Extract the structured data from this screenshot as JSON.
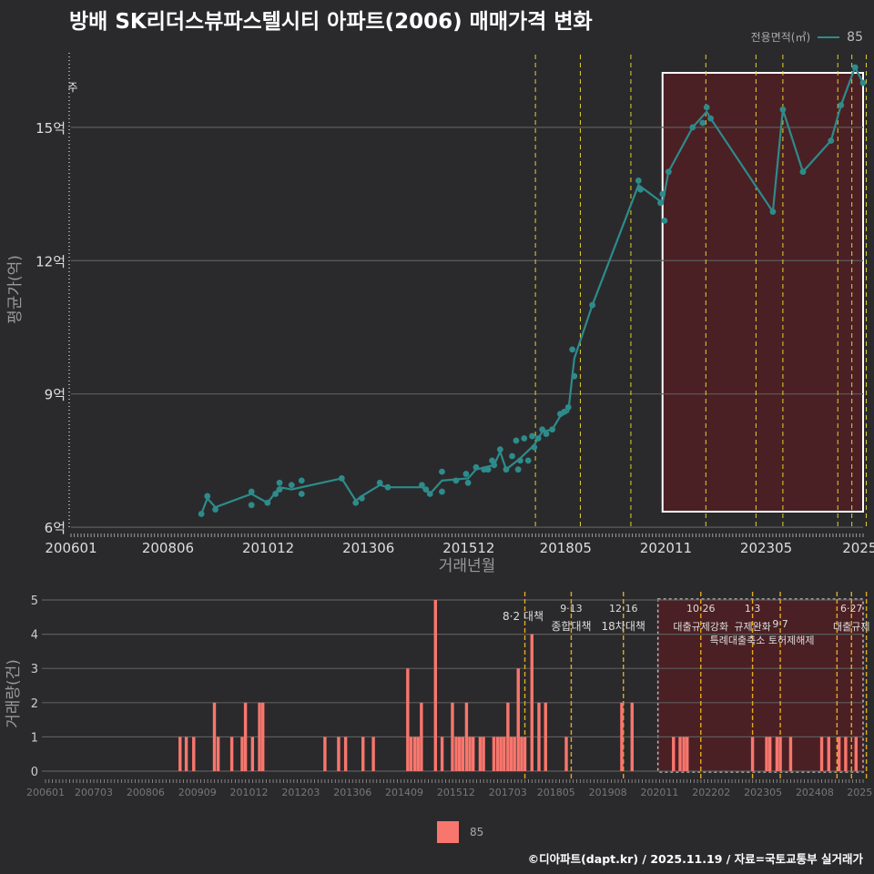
{
  "title": "방배 SK리더스뷰파스텔시티 아파트(2006) 매매가격 변화",
  "legend": {
    "title": "전용면적(㎡)",
    "label": "85"
  },
  "bar_legend_label": "85",
  "caption": "©디아파트(dapt.kr) / 2025.11.19 / 자료=국토교통부 실거래가",
  "colors": {
    "line": "#2e8b8b",
    "bar": "#f8766d",
    "shade": "#4a2024",
    "policy": "#e5d12b"
  },
  "annotation_note": "주",
  "chart_data": [
    {
      "type": "line",
      "title": "방배 SK리더스뷰파스텔시티 아파트(2006) 매매가격 변화",
      "xlabel": "거래년월",
      "ylabel": "평균가(억)",
      "xlim": [
        2006.0,
        2025.75
      ],
      "ylim": [
        5.9,
        16.8
      ],
      "xticks": [
        {
          "v": 2006.0,
          "label": "200601"
        },
        {
          "v": 2008.4167,
          "label": "200806"
        },
        {
          "v": 2010.9167,
          "label": "201012"
        },
        {
          "v": 2013.4167,
          "label": "201306"
        },
        {
          "v": 2015.9167,
          "label": "201512"
        },
        {
          "v": 2018.3333,
          "label": "201805"
        },
        {
          "v": 2020.8333,
          "label": "202011"
        },
        {
          "v": 2023.3333,
          "label": "202305"
        },
        {
          "v": 2025.6667,
          "label": "2025"
        }
      ],
      "yticks": [
        {
          "v": 6,
          "label": "6억"
        },
        {
          "v": 9,
          "label": "9억"
        },
        {
          "v": 12,
          "label": "12억"
        },
        {
          "v": 15,
          "label": "15억"
        }
      ],
      "shade_range": [
        2020.75,
        2025.75
      ],
      "policy_lines": [
        2017.58,
        2018.7,
        2019.96,
        2021.83,
        2023.08,
        2023.75,
        2025.12,
        2025.47,
        2025.83
      ],
      "series": [
        {
          "name": "85",
          "points": [
            [
              2009.25,
              6.3
            ],
            [
              2009.4,
              6.7
            ],
            [
              2009.6,
              6.4
            ],
            [
              2010.5,
              6.8
            ],
            [
              2010.5,
              6.5
            ],
            [
              2010.9,
              6.55
            ],
            [
              2011.1,
              6.75
            ],
            [
              2011.2,
              7.0
            ],
            [
              2011.2,
              6.85
            ],
            [
              2011.5,
              6.95
            ],
            [
              2011.75,
              6.75
            ],
            [
              2011.75,
              7.05
            ],
            [
              2012.75,
              7.1
            ],
            [
              2013.1,
              6.55
            ],
            [
              2013.25,
              6.65
            ],
            [
              2013.7,
              7.0
            ],
            [
              2013.9,
              6.9
            ],
            [
              2014.75,
              6.95
            ],
            [
              2014.85,
              6.85
            ],
            [
              2014.95,
              6.75
            ],
            [
              2015.25,
              7.25
            ],
            [
              2015.25,
              6.8
            ],
            [
              2015.6,
              7.05
            ],
            [
              2015.85,
              7.2
            ],
            [
              2015.9,
              7.0
            ],
            [
              2016.1,
              7.35
            ],
            [
              2016.3,
              7.3
            ],
            [
              2016.4,
              7.3
            ],
            [
              2016.5,
              7.5
            ],
            [
              2016.55,
              7.4
            ],
            [
              2016.7,
              7.75
            ],
            [
              2016.85,
              7.3
            ],
            [
              2017.0,
              7.6
            ],
            [
              2017.1,
              7.95
            ],
            [
              2017.15,
              7.3
            ],
            [
              2017.2,
              7.5
            ],
            [
              2017.3,
              8.0
            ],
            [
              2017.4,
              7.5
            ],
            [
              2017.5,
              8.05
            ],
            [
              2017.55,
              7.8
            ],
            [
              2017.65,
              8.0
            ],
            [
              2017.75,
              8.2
            ],
            [
              2017.85,
              8.1
            ],
            [
              2018.0,
              8.2
            ],
            [
              2018.2,
              8.55
            ],
            [
              2018.3,
              8.6
            ],
            [
              2018.4,
              8.7
            ],
            [
              2018.5,
              10.0
            ],
            [
              2018.55,
              9.4
            ],
            [
              2019.0,
              11.0
            ],
            [
              2020.15,
              13.8
            ],
            [
              2020.2,
              13.6
            ],
            [
              2020.7,
              13.3
            ],
            [
              2020.75,
              13.5
            ],
            [
              2020.8,
              12.9
            ],
            [
              2020.9,
              14.0
            ],
            [
              2021.5,
              15.0
            ],
            [
              2021.75,
              15.1
            ],
            [
              2021.85,
              15.45
            ],
            [
              2021.95,
              15.2
            ],
            [
              2023.5,
              13.1
            ],
            [
              2023.75,
              15.4
            ],
            [
              2024.25,
              14.0
            ],
            [
              2024.95,
              14.7
            ],
            [
              2025.2,
              15.5
            ],
            [
              2025.55,
              16.35
            ],
            [
              2025.75,
              16.0
            ]
          ],
          "trend": [
            [
              2009.25,
              6.3
            ],
            [
              2009.4,
              6.65
            ],
            [
              2009.6,
              6.45
            ],
            [
              2010.5,
              6.75
            ],
            [
              2010.9,
              6.55
            ],
            [
              2011.2,
              6.9
            ],
            [
              2011.5,
              6.85
            ],
            [
              2012.75,
              7.1
            ],
            [
              2013.1,
              6.6
            ],
            [
              2013.25,
              6.7
            ],
            [
              2013.7,
              6.95
            ],
            [
              2013.9,
              6.9
            ],
            [
              2014.75,
              6.9
            ],
            [
              2014.95,
              6.75
            ],
            [
              2015.25,
              7.05
            ],
            [
              2015.9,
              7.1
            ],
            [
              2016.1,
              7.3
            ],
            [
              2016.55,
              7.4
            ],
            [
              2016.7,
              7.7
            ],
            [
              2016.85,
              7.3
            ],
            [
              2017.2,
              7.55
            ],
            [
              2017.55,
              7.85
            ],
            [
              2017.75,
              8.15
            ],
            [
              2018.0,
              8.2
            ],
            [
              2018.2,
              8.5
            ],
            [
              2018.4,
              8.6
            ],
            [
              2018.55,
              9.8
            ],
            [
              2019.0,
              11.0
            ],
            [
              2020.15,
              13.7
            ],
            [
              2020.75,
              13.3
            ],
            [
              2020.9,
              14.0
            ],
            [
              2021.5,
              15.0
            ],
            [
              2021.85,
              15.35
            ],
            [
              2021.95,
              15.2
            ],
            [
              2023.5,
              13.1
            ],
            [
              2023.75,
              15.4
            ],
            [
              2024.25,
              14.0
            ],
            [
              2024.95,
              14.7
            ],
            [
              2025.2,
              15.5
            ],
            [
              2025.55,
              16.35
            ],
            [
              2025.75,
              16.0
            ]
          ]
        }
      ]
    },
    {
      "type": "bar",
      "xlabel": "",
      "ylabel": "거래량(건)",
      "xlim": [
        2006.0,
        2025.75
      ],
      "ylim": [
        0,
        5
      ],
      "xticks": [
        {
          "v": 2006.0,
          "label": "200601"
        },
        {
          "v": 2007.1667,
          "label": "200703"
        },
        {
          "v": 2008.4167,
          "label": "200806"
        },
        {
          "v": 2009.6667,
          "label": "200909"
        },
        {
          "v": 2010.9167,
          "label": "201012"
        },
        {
          "v": 2012.1667,
          "label": "201203"
        },
        {
          "v": 2013.4167,
          "label": "201306"
        },
        {
          "v": 2014.6667,
          "label": "201409"
        },
        {
          "v": 2015.9167,
          "label": "201512"
        },
        {
          "v": 2017.1667,
          "label": "201703"
        },
        {
          "v": 2018.3333,
          "label": "201805"
        },
        {
          "v": 2019.5833,
          "label": "201908"
        },
        {
          "v": 2020.8333,
          "label": "202011"
        },
        {
          "v": 2022.0833,
          "label": "202202"
        },
        {
          "v": 2023.3333,
          "label": "202305"
        },
        {
          "v": 2024.5833,
          "label": "202408"
        },
        {
          "v": 2025.6667,
          "label": "2025"
        }
      ],
      "yticks": [
        0,
        1,
        2,
        3,
        4,
        5
      ],
      "shade_range": [
        2020.75,
        2025.75
      ],
      "policy_lines": [
        2017.58,
        2018.7,
        2019.96,
        2021.83,
        2023.08,
        2023.75,
        2025.12,
        2025.47,
        2025.83
      ],
      "annotations": [
        {
          "date": "8·2",
          "label": "대책",
          "v": 2017.58
        },
        {
          "date": "9·13",
          "label": "종합대책",
          "v": 2018.7
        },
        {
          "date": "12·16",
          "label": "18차대책",
          "v": 2019.96
        },
        {
          "date": "10·26",
          "label": "대출규제강화",
          "v": 2021.83
        },
        {
          "date": "1·3",
          "label": "규제완화",
          "v": 2023.08
        },
        {
          "date": "9·7",
          "label": "특례대출축소 토허제해제",
          "v": 2023.75
        },
        {
          "date": "6·27",
          "label": "대출규제",
          "v": 2025.47
        }
      ],
      "series": [
        {
          "name": "85",
          "bars": [
            [
              2009.25,
              1
            ],
            [
              2009.4,
              1
            ],
            [
              2009.58,
              1
            ],
            [
              2010.08,
              2
            ],
            [
              2010.17,
              1
            ],
            [
              2010.5,
              1
            ],
            [
              2010.75,
              1
            ],
            [
              2010.83,
              2
            ],
            [
              2011.0,
              1
            ],
            [
              2011.17,
              2
            ],
            [
              2011.25,
              2
            ],
            [
              2012.75,
              1
            ],
            [
              2013.08,
              1
            ],
            [
              2013.25,
              1
            ],
            [
              2013.67,
              1
            ],
            [
              2013.92,
              1
            ],
            [
              2014.75,
              3
            ],
            [
              2014.83,
              1
            ],
            [
              2014.92,
              1
            ],
            [
              2015.0,
              1
            ],
            [
              2015.08,
              2
            ],
            [
              2015.42,
              5
            ],
            [
              2015.58,
              1
            ],
            [
              2015.83,
              2
            ],
            [
              2015.92,
              1
            ],
            [
              2016.0,
              1
            ],
            [
              2016.08,
              1
            ],
            [
              2016.17,
              2
            ],
            [
              2016.25,
              1
            ],
            [
              2016.33,
              1
            ],
            [
              2016.5,
              1
            ],
            [
              2016.58,
              1
            ],
            [
              2016.83,
              1
            ],
            [
              2016.92,
              1
            ],
            [
              2017.0,
              1
            ],
            [
              2017.08,
              1
            ],
            [
              2017.17,
              2
            ],
            [
              2017.25,
              1
            ],
            [
              2017.33,
              1
            ],
            [
              2017.42,
              3
            ],
            [
              2017.5,
              1
            ],
            [
              2017.58,
              1
            ],
            [
              2017.75,
              4
            ],
            [
              2017.92,
              2
            ],
            [
              2018.08,
              2
            ],
            [
              2018.58,
              1
            ],
            [
              2019.92,
              2
            ],
            [
              2020.17,
              2
            ],
            [
              2021.17,
              1
            ],
            [
              2021.33,
              1
            ],
            [
              2021.42,
              1
            ],
            [
              2021.5,
              1
            ],
            [
              2023.08,
              1
            ],
            [
              2023.42,
              1
            ],
            [
              2023.5,
              1
            ],
            [
              2023.67,
              1
            ],
            [
              2023.75,
              1
            ],
            [
              2024.0,
              1
            ],
            [
              2024.75,
              1
            ],
            [
              2024.92,
              1
            ],
            [
              2025.17,
              1
            ],
            [
              2025.33,
              1
            ],
            [
              2025.58,
              1
            ]
          ]
        }
      ]
    }
  ]
}
